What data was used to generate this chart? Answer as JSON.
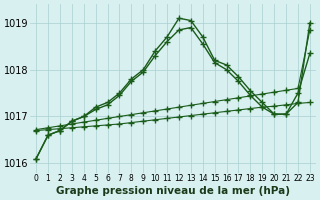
{
  "hours": [
    0,
    1,
    2,
    3,
    4,
    5,
    6,
    7,
    8,
    9,
    10,
    11,
    12,
    13,
    14,
    15,
    16,
    17,
    18,
    19,
    20,
    21,
    22,
    23
  ],
  "line1_y": [
    1016.1,
    1016.6,
    1016.7,
    1016.9,
    1017.0,
    1017.2,
    1017.3,
    1017.5,
    1017.8,
    1018.0,
    1018.4,
    1018.7,
    1019.1,
    1019.05,
    1018.7,
    1018.2,
    1018.1,
    1017.85,
    1017.55,
    1017.3,
    1017.05,
    1017.05,
    1017.3,
    1019.0
  ],
  "line2_y": [
    1016.1,
    1016.6,
    1016.7,
    1016.9,
    1017.0,
    1017.15,
    1017.25,
    1017.45,
    1017.75,
    1017.95,
    1018.3,
    1018.6,
    1018.85,
    1018.9,
    1018.55,
    1018.15,
    1018.0,
    1017.75,
    1017.45,
    1017.2,
    1017.05,
    1017.05,
    1017.5,
    1018.35
  ],
  "line3_y": [
    1016.7,
    1016.72,
    1016.74,
    1016.76,
    1016.78,
    1016.8,
    1016.82,
    1016.84,
    1016.87,
    1016.9,
    1016.93,
    1016.96,
    1016.99,
    1017.02,
    1017.05,
    1017.08,
    1017.11,
    1017.14,
    1017.17,
    1017.2,
    1017.22,
    1017.25,
    1017.28,
    1017.3
  ],
  "line4_y": [
    1016.72,
    1016.76,
    1016.8,
    1016.84,
    1016.88,
    1016.92,
    1016.96,
    1017.0,
    1017.04,
    1017.08,
    1017.12,
    1017.16,
    1017.2,
    1017.24,
    1017.28,
    1017.32,
    1017.36,
    1017.4,
    1017.44,
    1017.48,
    1017.52,
    1017.56,
    1017.6,
    1018.85
  ],
  "bg_color": "#d8f0f0",
  "grid_color": "#aacfcf",
  "line_color": "#1a5c1a",
  "title": "Graphe pression niveau de la mer (hPa)",
  "ylim_min": 1015.8,
  "ylim_max": 1019.4,
  "yticks": [
    1016,
    1017,
    1018,
    1019
  ],
  "xlabel_fontsize": 7.5
}
